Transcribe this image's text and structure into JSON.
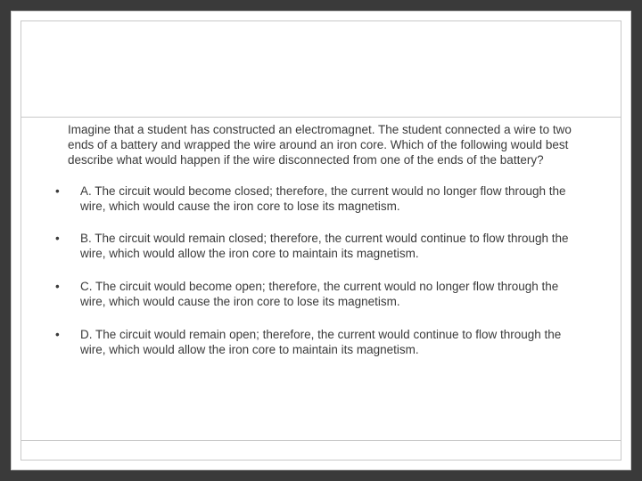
{
  "slide": {
    "background_color": "#3a3a3a",
    "frame_border": "#c8c8c8",
    "text_color": "#3a3a3a",
    "font_size": 13.5,
    "question": "Imagine that a student has constructed an electromagnet.  The student connected a wire to two ends of a battery and wrapped the wire around an iron core.  Which of the following would best describe what would happen if the wire disconnected from one of the ends of the battery?",
    "options": [
      "A. The circuit would become closed; therefore, the current would no longer flow through the wire, which would cause the iron core to lose its magnetism.",
      "B. The circuit would remain closed; therefore, the current would continue to flow through the wire, which would allow the iron core to maintain its magnetism.",
      "C. The circuit would become open; therefore, the current would no longer flow through the wire, which would cause the iron core to lose its magnetism.",
      "D. The circuit would remain open; therefore, the current would continue to flow through the wire, which would allow the iron core to maintain its magnetism."
    ]
  }
}
